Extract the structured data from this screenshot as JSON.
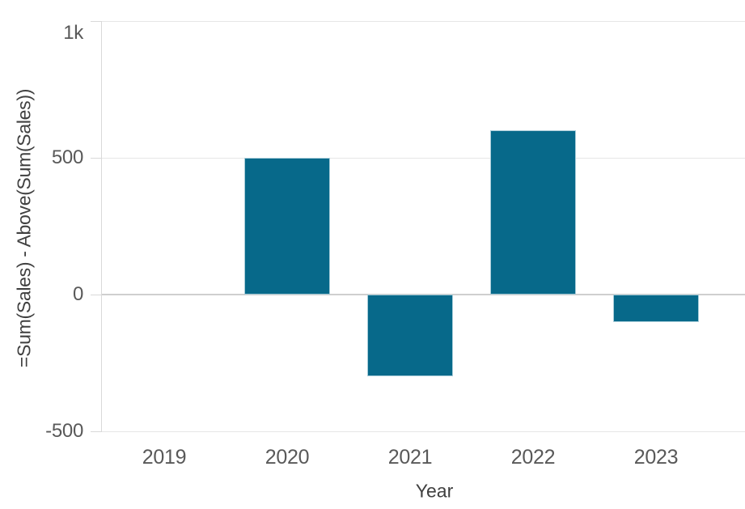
{
  "chart_data": {
    "type": "bar",
    "categories": [
      "2019",
      "2020",
      "2021",
      "2022",
      "2023"
    ],
    "values": [
      null,
      500,
      -300,
      600,
      -100
    ],
    "title": "",
    "xlabel": "Year",
    "ylabel": "=Sum(Sales) - Above(Sum(Sales))",
    "ylim": [
      -500,
      1000
    ],
    "yticks": [
      {
        "value": 1000,
        "label": "1k"
      },
      {
        "value": 500,
        "label": "500"
      },
      {
        "value": 0,
        "label": "0"
      },
      {
        "value": -500,
        "label": "-500"
      }
    ],
    "grid": true,
    "legend": "none",
    "colors": {
      "bar_fill": "#07698a",
      "bar_border": "#a9cdd9",
      "gridline": "#e6e6e6",
      "zero_line": "#cfcfcf",
      "axis_line": "#d9d9d9",
      "tick_label": "#595959",
      "axis_title": "#404040",
      "background": "#ffffff"
    }
  }
}
